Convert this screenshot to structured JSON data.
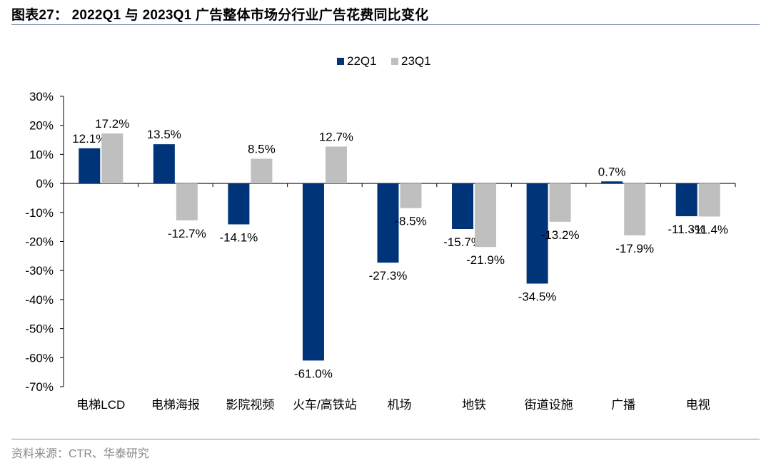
{
  "header": {
    "title": "图表27： 2022Q1 与 2023Q1 广告整体市场分行业广告花费同比变化"
  },
  "footer": {
    "source": "资料来源：CTR、华泰研究"
  },
  "chart_data": {
    "type": "bar",
    "title": "",
    "xlabel": "",
    "ylabel": "",
    "ylim": [
      -70,
      30
    ],
    "yticks": [
      30,
      20,
      10,
      0,
      -10,
      -20,
      -30,
      -40,
      -50,
      -60,
      -70
    ],
    "ytick_format": "percent",
    "grid": false,
    "legend_position": "top-center",
    "categories": [
      "电梯LCD",
      "电梯海报",
      "影院视频",
      "火车/高铁站",
      "机场",
      "地铁",
      "街道设施",
      "广播",
      "电视"
    ],
    "series": [
      {
        "name": "22Q1",
        "color": "#003478",
        "values": [
          12.1,
          13.5,
          -14.1,
          -61.0,
          -27.3,
          -15.7,
          -34.5,
          0.7,
          -11.3
        ],
        "labels": [
          "12.1%",
          "13.5%",
          "-14.1%",
          "-61.0%",
          "-27.3%",
          "-15.7%",
          "-34.5%",
          "0.7%",
          "-11.3%"
        ]
      },
      {
        "name": "23Q1",
        "color": "#bfbfbf",
        "values": [
          17.2,
          -12.7,
          8.5,
          12.7,
          -8.5,
          -21.9,
          -13.2,
          -17.9,
          -11.4
        ],
        "labels": [
          "17.2%",
          "-12.7%",
          "8.5%",
          "12.7%",
          "-8.5%",
          "-21.9%",
          "-13.2%",
          "-17.9%",
          "-11.4%"
        ]
      }
    ]
  }
}
